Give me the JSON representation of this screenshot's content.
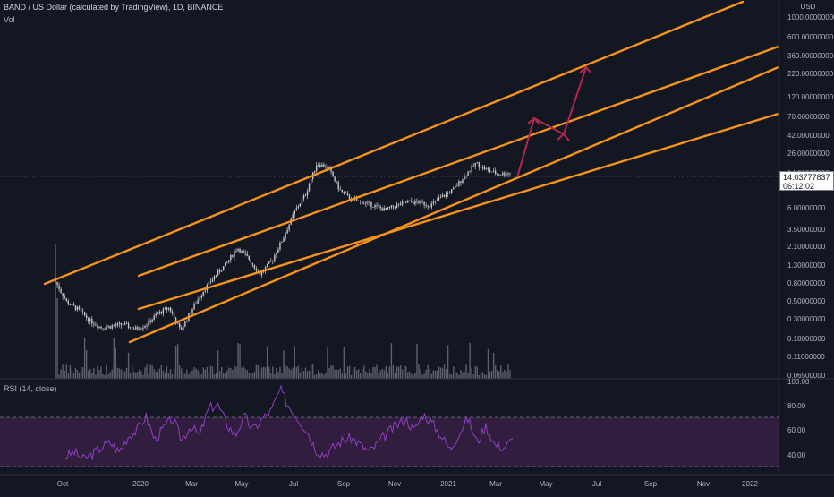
{
  "header": {
    "title": "BAND / US Dollar (calculated by TradingView), 1D, BINANCE",
    "volume_label": "Vol",
    "rsi_label": "RSI (14, close)",
    "currency": "USD"
  },
  "price_tag": {
    "price": "14.03777837",
    "countdown": "06:12:02"
  },
  "colors": {
    "background": "#131722",
    "channel_lines": "#f7931a",
    "arrows": "#b5274f",
    "rsi_line": "#8e3fbf",
    "rsi_band": "#4a2458",
    "candles": "#c8c8c8",
    "volume": "#5d606b",
    "axis_text": "#b2b5be"
  },
  "chart_data": [
    {
      "type": "line",
      "title": "BAND / US Dollar (calculated by TradingView), 1D, BINANCE",
      "log_scale": true,
      "x_ticks": [
        "Oct",
        "2020",
        "Mar",
        "May",
        "Jul",
        "Sep",
        "Nov",
        "2021",
        "Mar",
        "May",
        "Jul",
        "Sep",
        "Nov",
        "2022"
      ],
      "y_ticks": [
        "1000.00000000",
        "600.00000000",
        "360.00000000",
        "220.00000000",
        "120.00000000",
        "70.00000000",
        "42.00000000",
        "26.00000000",
        "14.00000000",
        "6.00000000",
        "3.50000000",
        "2.10000000",
        "1.30000000",
        "0.80000000",
        "0.50000000",
        "0.30000000",
        "0.18000000",
        "0.11000000",
        "0.06500000"
      ],
      "last_price": 14.03777837,
      "series": [
        {
          "values": [
            0.82,
            0.48,
            0.4,
            0.3,
            0.25,
            0.26,
            0.27,
            0.24,
            0.27,
            0.36,
            0.42,
            0.23,
            0.4,
            0.65,
            0.95,
            1.3,
            2.0,
            1.5,
            1.0,
            1.4,
            2.5,
            5.0,
            8.0,
            18.0,
            16.0,
            9.0,
            7.0,
            6.5,
            6.0,
            5.3,
            6.0,
            6.5,
            6.5,
            6.0,
            7.5,
            9.0,
            13.0,
            18.0,
            15.0,
            13.5,
            14.04
          ]
        }
      ],
      "channel_lines": 4,
      "projection_arrows": 3,
      "grid": false
    },
    {
      "type": "line",
      "title": "RSI (14, close)",
      "y_ticks": [
        "100.00",
        "80.00",
        "60.00",
        "40.00"
      ],
      "ylim": [
        30,
        100
      ],
      "bands": [
        30,
        70
      ],
      "series": [
        {
          "values": [
            38,
            42,
            36,
            40,
            46,
            50,
            42,
            55,
            60,
            72,
            52,
            62,
            70,
            52,
            64,
            55,
            78,
            82,
            66,
            56,
            72,
            60,
            70,
            76,
            94,
            80,
            70,
            60,
            44,
            40,
            46,
            52,
            54,
            48,
            42,
            50,
            58,
            64,
            70,
            60,
            74,
            66,
            56,
            44,
            58,
            70,
            50,
            64,
            48,
            46,
            52
          ]
        }
      ]
    }
  ]
}
